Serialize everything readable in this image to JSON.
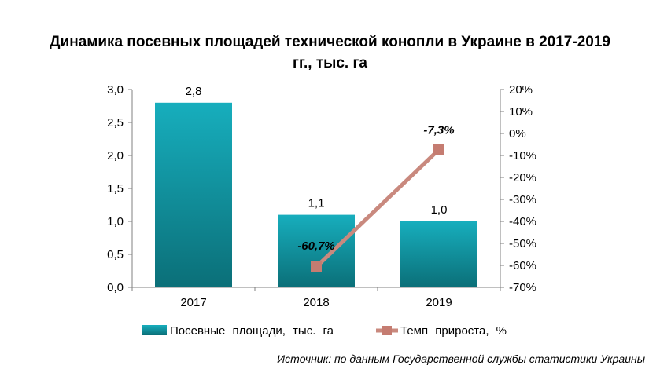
{
  "title_line1": "Динамика посевных площадей технической конопли в Украине в 2017-2019",
  "title_line2": "гг., тыс. га",
  "source": "Источник: по данным Государственной службы статистики Украины",
  "colors": {
    "bar_top": "#17aebd",
    "bar_bottom": "#0b6f78",
    "line": "#c9897e",
    "marker": "#c57c71",
    "axis": "#808080"
  },
  "chart_data": {
    "type": "bar+line",
    "categories": [
      "2017",
      "2018",
      "2019"
    ],
    "series": [
      {
        "name": "Посевные  площади,  тыс. га",
        "type": "bar",
        "axis": "left",
        "values": [
          2.8,
          1.1,
          1.0
        ],
        "labels": [
          "2,8",
          "1,1",
          "1,0"
        ]
      },
      {
        "name": "Темп  прироста,  %",
        "type": "line",
        "axis": "right",
        "values": [
          null,
          -60.7,
          -7.3
        ],
        "labels": [
          "",
          "-60,7%",
          "-7,3%"
        ]
      }
    ],
    "left_axis": {
      "ylim": [
        0,
        3.0
      ],
      "ticks": [
        0,
        0.5,
        1.0,
        1.5,
        2.0,
        2.5,
        3.0
      ],
      "tick_labels": [
        "0,0",
        "0,5",
        "1,0",
        "1,5",
        "2,0",
        "2,5",
        "3,0"
      ]
    },
    "right_axis": {
      "ylim": [
        -70,
        20
      ],
      "ticks": [
        -70,
        -60,
        -50,
        -40,
        -30,
        -20,
        -10,
        0,
        10,
        20
      ],
      "tick_labels": [
        "-70%",
        "-60%",
        "-50%",
        "-40%",
        "-30%",
        "-20%",
        "-10%",
        "0%",
        "10%",
        "20%"
      ]
    },
    "grid": false,
    "legend_position": "bottom"
  }
}
